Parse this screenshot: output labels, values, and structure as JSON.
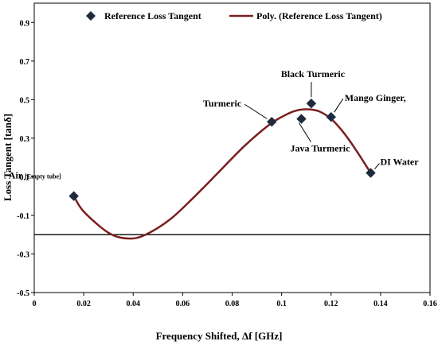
{
  "chart_data": {
    "type": "scatter",
    "xlabel": "Frequency Shifted, Δf [GHz]",
    "ylabel": "Loss Tangent [tanδ]",
    "xlim": [
      0,
      0.16
    ],
    "ylim": [
      -0.5,
      1.0
    ],
    "x_ticks": [
      0,
      0.02,
      0.04,
      0.06,
      0.08,
      0.1,
      0.12,
      0.14,
      0.16
    ],
    "x_tick_labels": [
      "0",
      "0.02",
      "0.04",
      "0.06",
      "0.08",
      "0.1",
      "0.12",
      "0.14",
      "0.16"
    ],
    "y_ticks": [
      -0.5,
      -0.3,
      -0.1,
      0.1,
      0.3,
      0.5,
      0.7,
      0.9
    ],
    "y_tick_labels": [
      "-0.5",
      "-0.3",
      "-0.1",
      "0.1",
      "0.3",
      "0.5",
      "0.7",
      "0.9"
    ],
    "reference_line_y": -0.2,
    "grid": false,
    "legend_position": "top",
    "series": [
      {
        "name": "Reference Loss Tangent",
        "marker": "diamond",
        "color": "#1f2a3c",
        "points": [
          {
            "x": 0.016,
            "y": 0.0,
            "label": "Air",
            "sublabel": "[Empty tube]"
          },
          {
            "x": 0.096,
            "y": 0.385,
            "label": "Turmeric"
          },
          {
            "x": 0.108,
            "y": 0.4,
            "label": "Java Turmeric"
          },
          {
            "x": 0.112,
            "y": 0.48,
            "label": "Black Turmeric"
          },
          {
            "x": 0.12,
            "y": 0.41,
            "label": "Mango Ginger,"
          },
          {
            "x": 0.136,
            "y": 0.12,
            "label": "DI Water"
          }
        ]
      },
      {
        "name": "Poly. (Reference Loss Tangent)",
        "type": "line",
        "color": "#7a1f1f",
        "x": [
          0.016,
          0.02,
          0.03,
          0.038,
          0.045,
          0.055,
          0.065,
          0.075,
          0.085,
          0.095,
          0.1,
          0.105,
          0.11,
          0.115,
          0.12,
          0.125,
          0.13,
          0.136
        ],
        "y": [
          0.0,
          -0.08,
          -0.19,
          -0.22,
          -0.2,
          -0.12,
          0.0,
          0.13,
          0.26,
          0.37,
          0.41,
          0.44,
          0.45,
          0.44,
          0.4,
          0.33,
          0.24,
          0.12
        ]
      }
    ]
  }
}
